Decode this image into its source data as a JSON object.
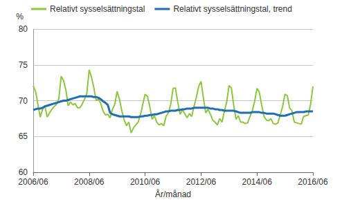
{
  "chart_data": {
    "type": "line",
    "x_label": "År/månad",
    "y_label": "%",
    "categories": [
      "2006/06",
      null,
      null,
      null,
      null,
      null,
      null,
      null,
      null,
      null,
      null,
      null,
      null,
      null,
      null,
      null,
      null,
      null,
      null,
      null,
      null,
      null,
      null,
      null,
      "2008/06",
      null,
      null,
      null,
      null,
      null,
      null,
      null,
      null,
      null,
      null,
      null,
      null,
      null,
      null,
      null,
      null,
      null,
      null,
      null,
      null,
      null,
      null,
      null,
      "2010/06",
      null,
      null,
      null,
      null,
      null,
      null,
      null,
      null,
      null,
      null,
      null,
      null,
      null,
      null,
      null,
      null,
      null,
      null,
      null,
      null,
      null,
      null,
      null,
      "2012/06",
      null,
      null,
      null,
      null,
      null,
      null,
      null,
      null,
      null,
      null,
      null,
      null,
      null,
      null,
      null,
      null,
      null,
      null,
      null,
      null,
      null,
      null,
      null,
      "2014/06",
      null,
      null,
      null,
      null,
      null,
      null,
      null,
      null,
      null,
      null,
      null,
      null,
      null,
      null,
      null,
      null,
      null,
      null,
      null,
      null,
      null,
      null,
      null,
      "2016/06"
    ],
    "series": [
      {
        "name": "Relativt sysselsättningstal",
        "color": "#8cc83c",
        "values": [
          72.1,
          71.3,
          69.5,
          67.7,
          68.8,
          69.3,
          67.7,
          68.3,
          68.8,
          69.2,
          69.5,
          70.3,
          73.4,
          72.8,
          71.5,
          69.3,
          69.8,
          69.4,
          69.6,
          69.0,
          69.0,
          69.5,
          70.2,
          71.0,
          74.3,
          73.3,
          71.8,
          70.0,
          70.2,
          69.6,
          68.5,
          68.0,
          68.1,
          67.6,
          68.8,
          69.5,
          71.3,
          70.2,
          68.6,
          67.3,
          66.5,
          67.0,
          65.5,
          66.2,
          66.6,
          67.0,
          68.0,
          69.5,
          70.9,
          70.6,
          69.2,
          67.4,
          67.9,
          67.0,
          66.6,
          66.8,
          66.5,
          67.8,
          68.3,
          69.5,
          71.7,
          71.8,
          69.8,
          68.1,
          68.7,
          68.2,
          67.6,
          68.2,
          67.8,
          69.2,
          70.5,
          72.0,
          72.7,
          70.4,
          68.3,
          68.8,
          68.1,
          67.3,
          67.0,
          66.6,
          67.5,
          67.0,
          68.5,
          69.8,
          72.1,
          71.8,
          69.4,
          67.4,
          67.9,
          67.0,
          67.0,
          66.8,
          66.9,
          67.8,
          68.6,
          69.9,
          71.7,
          71.2,
          69.4,
          67.8,
          67.3,
          67.2,
          67.5,
          66.8,
          66.7,
          66.9,
          68.0,
          69.2,
          70.9,
          70.7,
          69.0,
          68.6,
          67.0,
          66.9,
          66.8,
          66.7,
          67.8,
          67.9,
          68.0,
          69.5,
          72.0
        ]
      },
      {
        "name": "Relativt sysselsättningstal, trend",
        "color": "#1f6eb4",
        "values": [
          68.7,
          68.8,
          68.9,
          68.9,
          69.0,
          69.2,
          69.3,
          69.4,
          69.5,
          69.6,
          69.7,
          69.8,
          69.9,
          70.0,
          70.0,
          70.1,
          70.2,
          70.3,
          70.4,
          70.5,
          70.6,
          70.6,
          70.6,
          70.6,
          70.6,
          70.6,
          70.5,
          70.5,
          70.4,
          70.2,
          69.9,
          69.7,
          69.4,
          68.3,
          68.1,
          68.0,
          67.9,
          67.8,
          67.8,
          67.8,
          67.8,
          67.8,
          67.7,
          67.7,
          67.7,
          67.7,
          67.8,
          67.8,
          67.9,
          67.9,
          68.0,
          68.0,
          68.1,
          68.1,
          68.2,
          68.3,
          68.4,
          68.5,
          68.5,
          68.6,
          68.6,
          68.6,
          68.7,
          68.7,
          68.8,
          68.8,
          68.9,
          68.9,
          68.9,
          69.0,
          69.0,
          69.0,
          69.0,
          69.0,
          69.0,
          69.0,
          68.9,
          68.9,
          68.8,
          68.8,
          68.7,
          68.7,
          68.6,
          68.6,
          68.6,
          68.6,
          68.6,
          68.5,
          68.4,
          68.3,
          68.3,
          68.3,
          68.3,
          68.3,
          68.4,
          68.4,
          68.4,
          68.4,
          68.3,
          68.3,
          68.2,
          68.2,
          68.2,
          68.2,
          68.1,
          68.0,
          67.9,
          67.9,
          67.9,
          68.0,
          68.1,
          68.2,
          68.3,
          68.4,
          68.4,
          68.4,
          68.4,
          68.5,
          68.5,
          68.5,
          68.5
        ]
      }
    ],
    "ylim": [
      60,
      80
    ],
    "yticks": [
      60,
      65,
      70,
      75,
      80
    ],
    "grid": true,
    "legend": "top"
  }
}
